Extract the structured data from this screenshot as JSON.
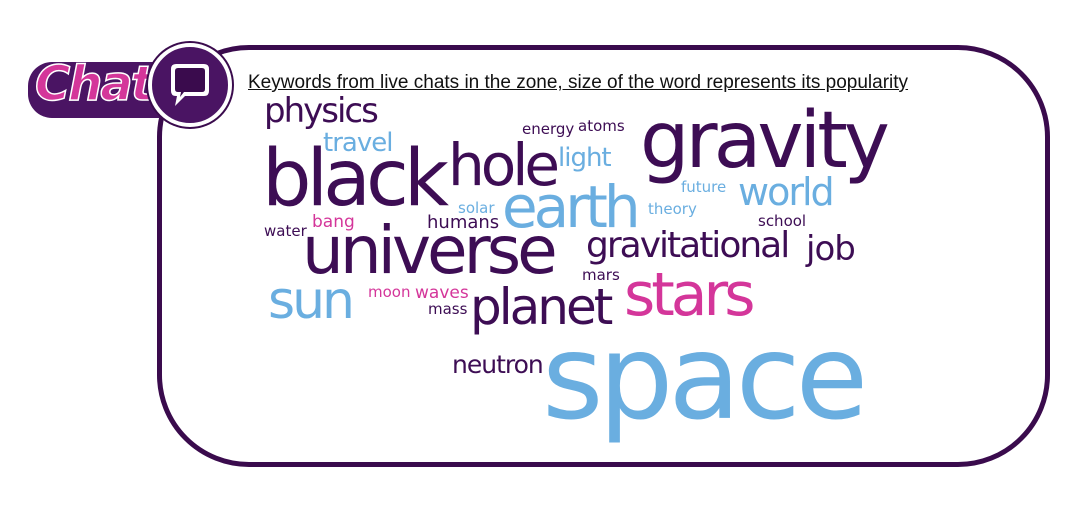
{
  "logo": {
    "text": "Chat",
    "icon": "speech-bubble-icon",
    "colors": {
      "pill": "#4a1463",
      "text": "#d4369a"
    }
  },
  "caption": "Keywords from live chats in the zone, size of the word represents its popularity",
  "colors": {
    "dark_purple": "#3d0d54",
    "light_blue": "#6aaee0",
    "pink": "#d4369a",
    "frame_border": "#3a0b4d"
  },
  "words": {
    "space": "space",
    "gravity": "gravity",
    "black": "black",
    "universe": "universe",
    "hole": "hole",
    "earth": "earth",
    "stars": "stars",
    "planet": "planet",
    "sun": "sun",
    "gravitational": "gravitational",
    "world": "world",
    "job": "job",
    "physics": "physics",
    "travel": "travel",
    "light": "light",
    "neutron": "neutron",
    "humans": "humans",
    "energy": "energy",
    "atoms": "atoms",
    "future": "future",
    "theory": "theory",
    "school": "school",
    "solar": "solar",
    "water": "water",
    "bang": "bang",
    "mars": "mars",
    "moon": "moon",
    "waves": "waves",
    "mass": "mass"
  }
}
